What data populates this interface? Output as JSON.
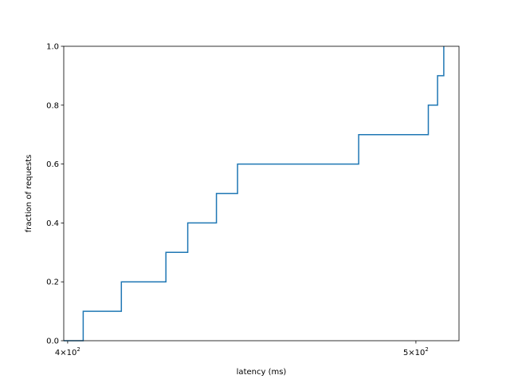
{
  "chart_data": {
    "type": "line",
    "drawstyle": "steps-post",
    "title": "",
    "xlabel": "latency (ms)",
    "ylabel": "fraction of requests",
    "xscale": "log",
    "xlim": [
      399,
      514
    ],
    "ylim": [
      0,
      1.0
    ],
    "grid": false,
    "x_ticks": [
      {
        "value": 400,
        "base": "4",
        "mult": "×10",
        "exp": "2"
      },
      {
        "value": 500,
        "base": "5",
        "mult": "×10",
        "exp": "2"
      }
    ],
    "y_ticks": [
      {
        "value": 0.0,
        "label": "0.0"
      },
      {
        "value": 0.2,
        "label": "0.2"
      },
      {
        "value": 0.4,
        "label": "0.4"
      },
      {
        "value": 0.6,
        "label": "0.6"
      },
      {
        "value": 0.8,
        "label": "0.8"
      },
      {
        "value": 1.0,
        "label": "1.0"
      }
    ],
    "series": [
      {
        "color": "#1f77b4",
        "x": [
          400,
          404,
          414,
          426,
          432,
          440,
          446,
          482,
          504,
          507,
          509
        ],
        "y": [
          0.0,
          0.1,
          0.2,
          0.3,
          0.4,
          0.5,
          0.6,
          0.7,
          0.8,
          0.9,
          1.0
        ]
      }
    ]
  }
}
